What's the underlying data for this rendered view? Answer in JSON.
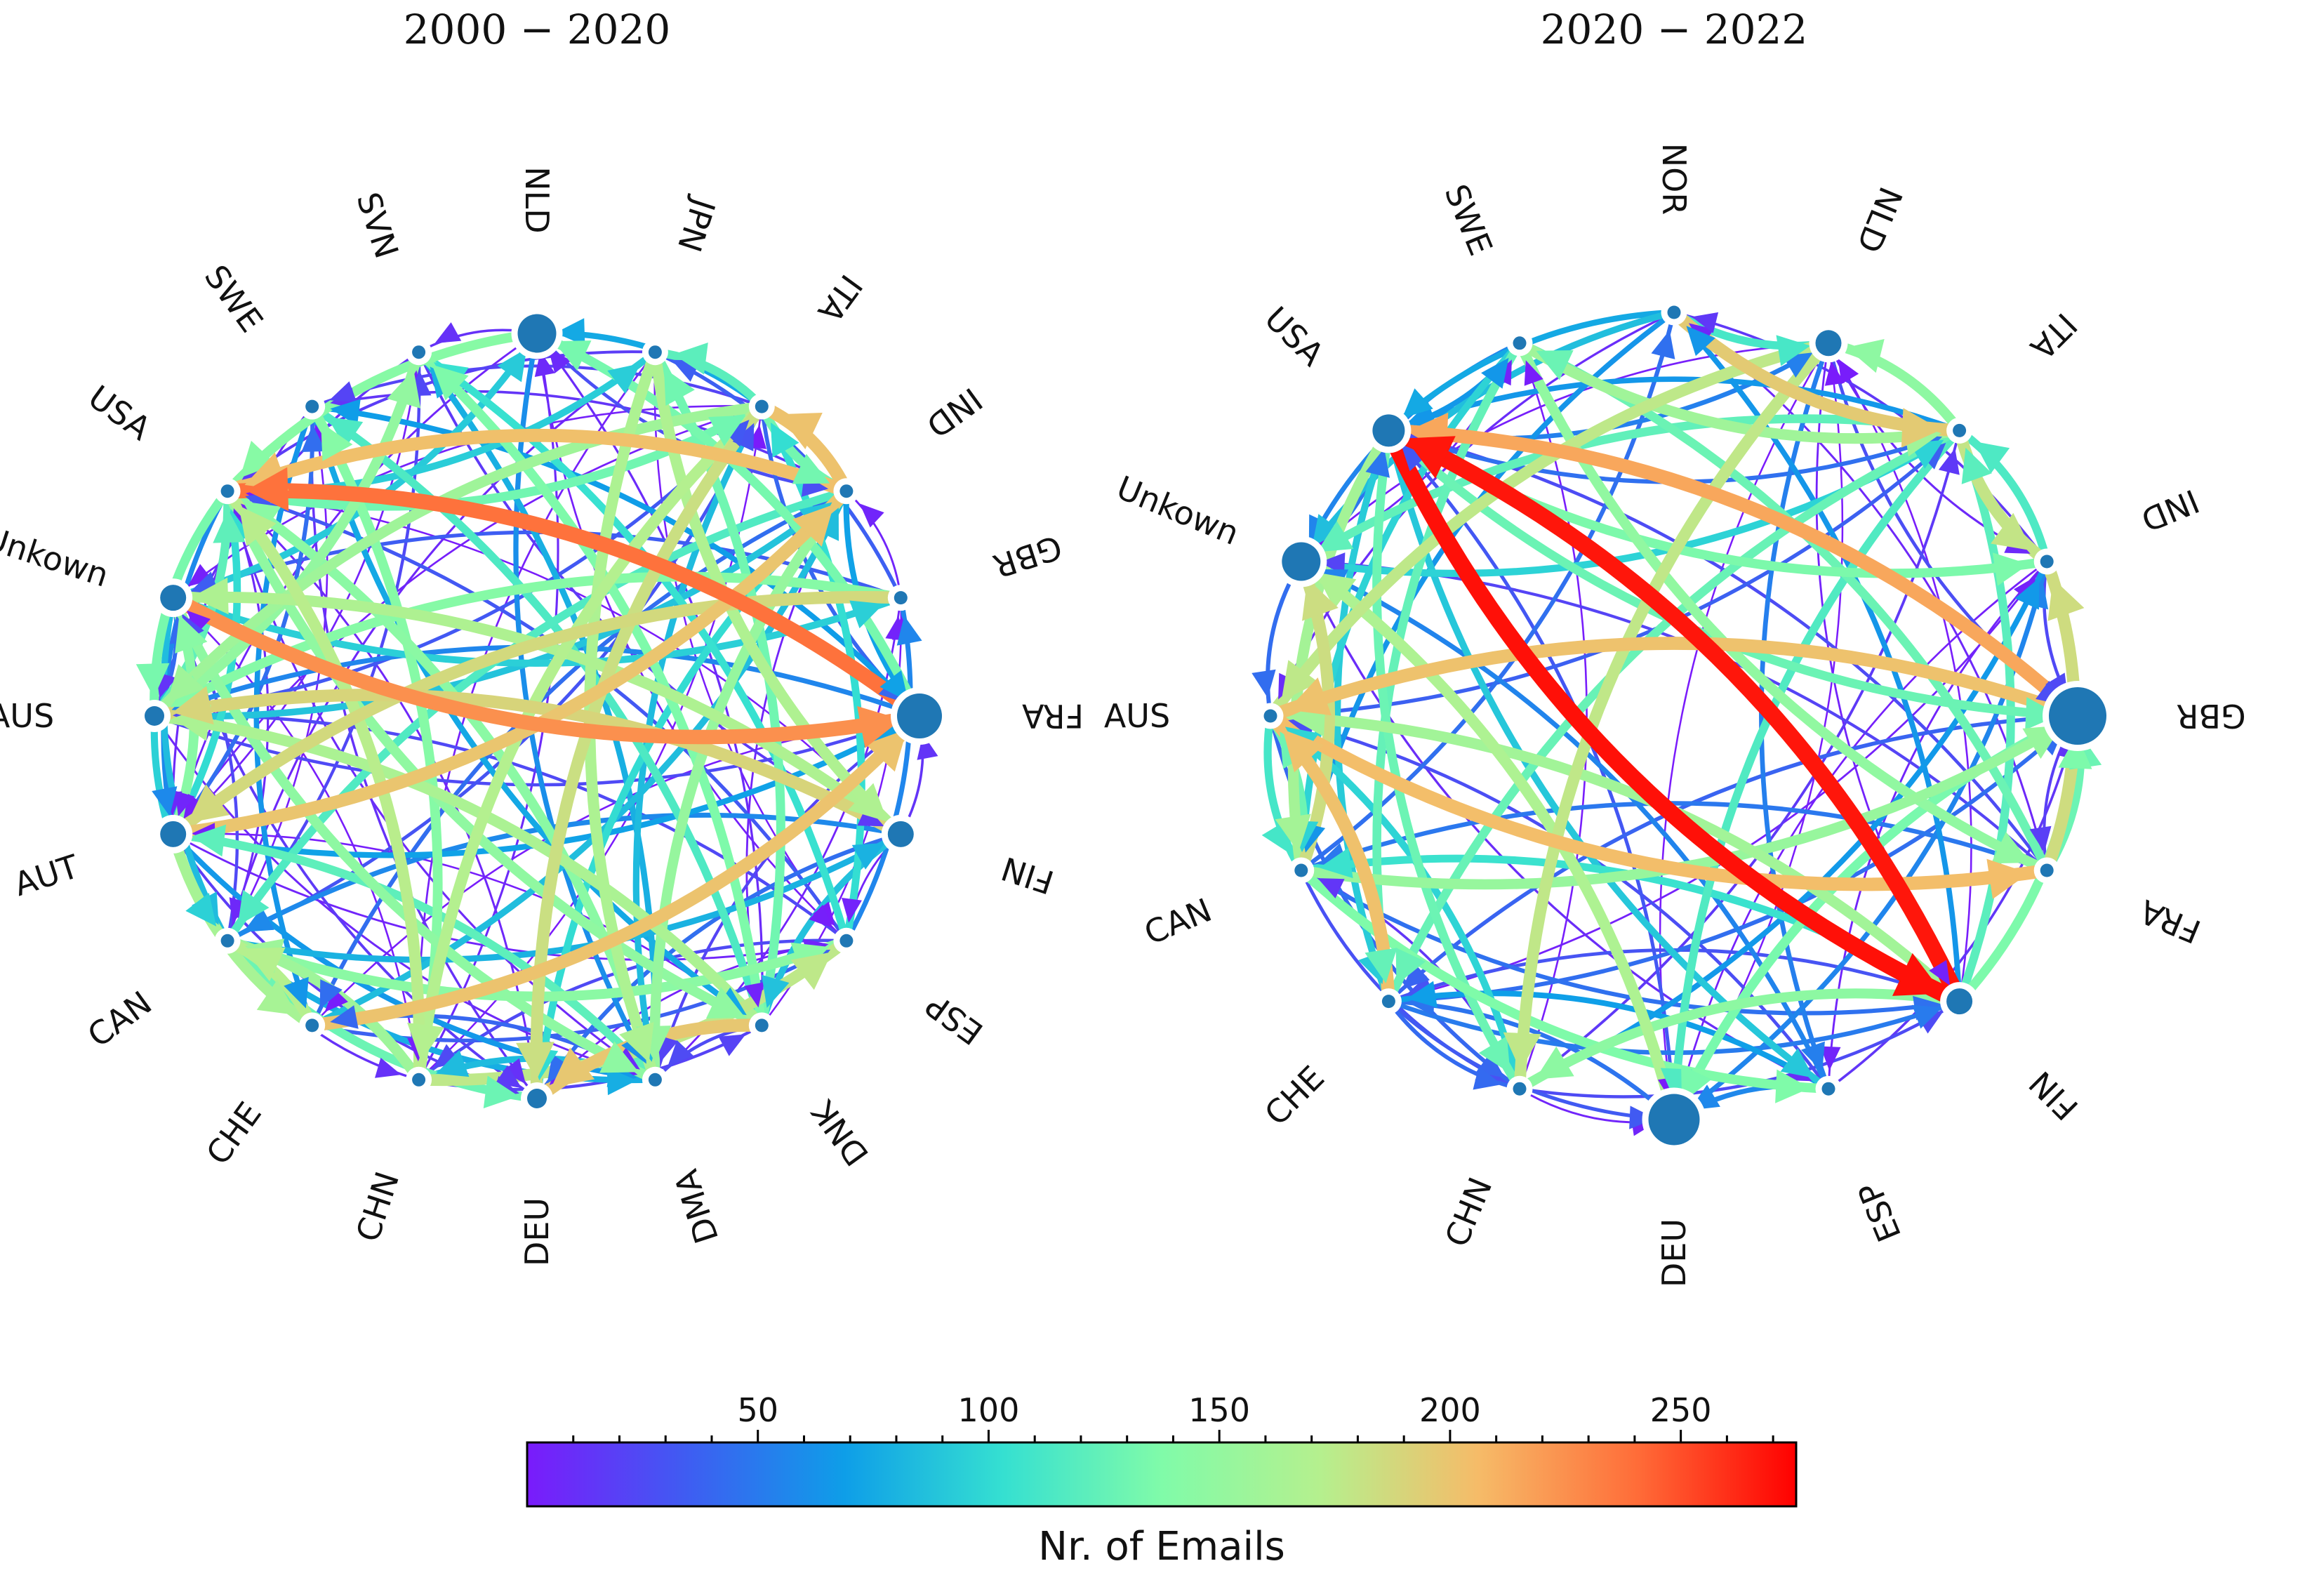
{
  "colors": {
    "colormap": [
      "#7a1bfb",
      "#3f5cf2",
      "#0e9ee8",
      "#35e0d1",
      "#80fba9",
      "#b5f08e",
      "#f6bb68",
      "#ff6c38",
      "#ff0000"
    ],
    "node": "#1f77b4"
  },
  "panels": [
    {
      "title": "2000 − 2020",
      "nodes": [
        "NLD",
        "SVN",
        "SWE",
        "USA",
        "Unkown",
        "AUS",
        "AUT",
        "CAN",
        "CHE",
        "CHN",
        "DEU",
        "DMA",
        "DNK",
        "ESP",
        "FIN",
        "FRA",
        "GBR",
        "IND",
        "ITA",
        "JPN"
      ],
      "node_sizes": [
        5,
        1,
        1,
        1,
        3,
        2,
        3,
        1,
        1,
        1,
        2,
        1,
        1,
        1,
        3,
        6,
        1,
        1,
        1,
        1
      ]
    },
    {
      "title": "2020 − 2022",
      "nodes": [
        "NOR",
        "SWE",
        "USA",
        "Unkown",
        "AUS",
        "CAN",
        "CHE",
        "CHN",
        "DEU",
        "ESP",
        "FIN",
        "FRA",
        "GBR",
        "IND",
        "ITA",
        "NLD"
      ],
      "node_sizes": [
        1,
        1,
        4,
        5,
        1,
        1,
        1,
        1,
        7,
        1,
        3,
        1,
        8,
        1,
        1,
        3
      ]
    }
  ],
  "colorbar": {
    "label": "Nr. of Emails",
    "min": 0,
    "max": 275,
    "ticks": [
      50,
      100,
      150,
      200,
      250
    ]
  }
}
